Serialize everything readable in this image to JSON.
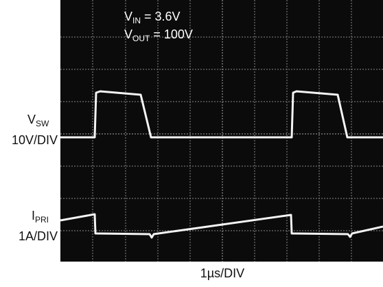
{
  "scope": {
    "conditions": [
      {
        "symbol": "V",
        "subscript": "IN",
        "text": "= 3.6V"
      },
      {
        "symbol": "V",
        "subscript": "OUT",
        "text": "= 100V"
      }
    ],
    "channels": [
      {
        "symbol": "V",
        "subscript": "SW",
        "scale": "10V/DIV"
      },
      {
        "symbol": "I",
        "subscript": "PRI",
        "scale": "1A/DIV"
      }
    ],
    "timebase": "1µs/DIV"
  }
}
